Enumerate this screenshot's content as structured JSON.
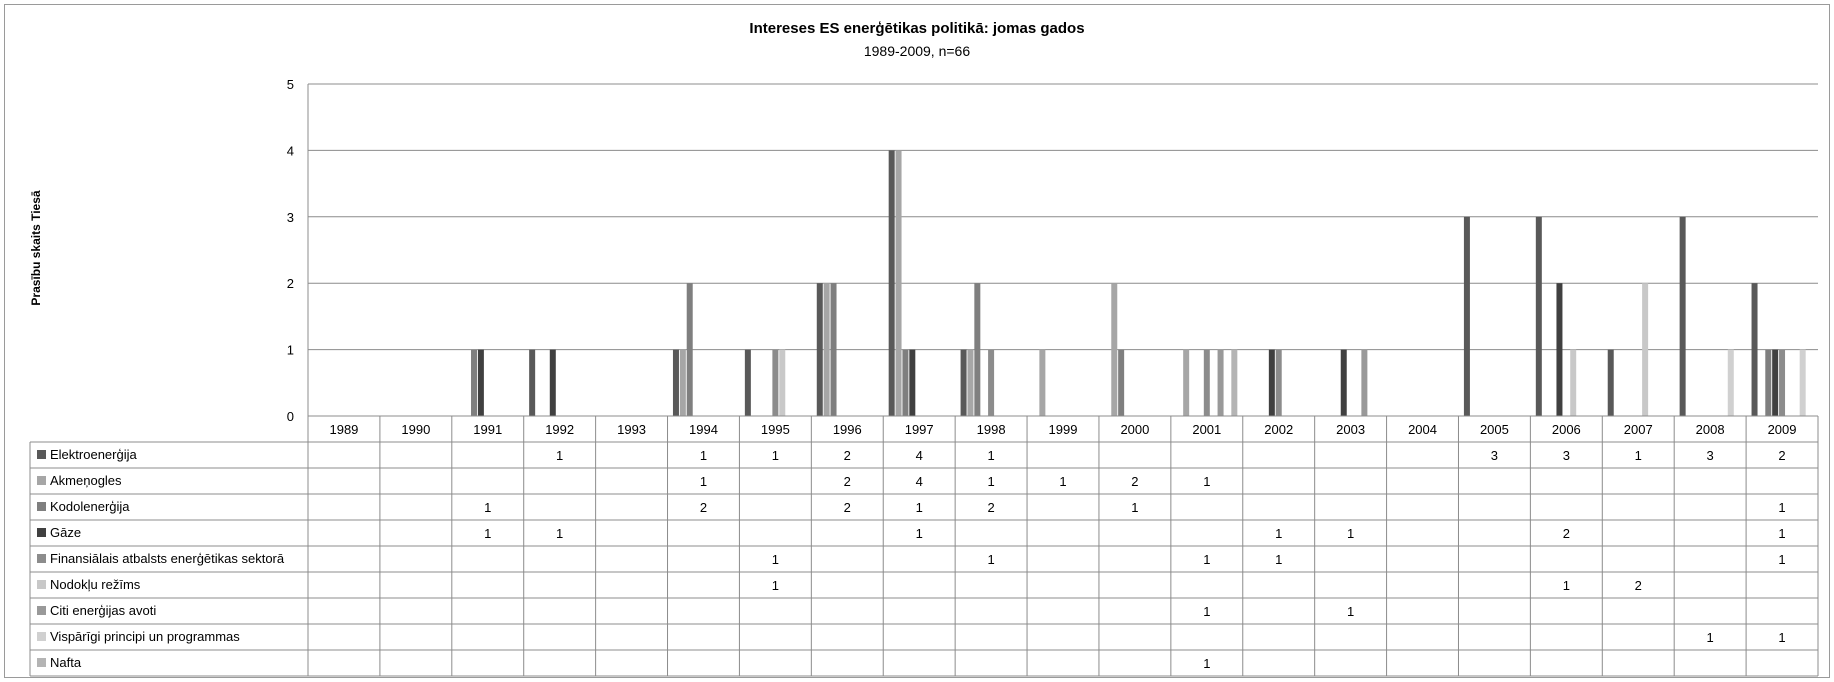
{
  "chart_data": {
    "type": "bar",
    "title": "Intereses ES enerģētikas politikā: jomas gados",
    "subtitle": "1989-2009, n=66",
    "ylabel": "Prasību skaits Tiesā",
    "xlabel": "",
    "ylim": [
      0,
      5
    ],
    "yticks": [
      0,
      1,
      2,
      3,
      4,
      5
    ],
    "grid": true,
    "legend": "data-table-below",
    "categories": [
      "1989",
      "1990",
      "1991",
      "1992",
      "1993",
      "1994",
      "1995",
      "1996",
      "1997",
      "1998",
      "1999",
      "2000",
      "2001",
      "2002",
      "2003",
      "2004",
      "2005",
      "2006",
      "2007",
      "2008",
      "2009"
    ],
    "series": [
      {
        "name": "Elektroenerģija",
        "color": "#595959",
        "values": [
          null,
          null,
          null,
          1,
          null,
          1,
          1,
          2,
          4,
          1,
          null,
          null,
          null,
          null,
          null,
          null,
          3,
          3,
          1,
          3,
          2
        ]
      },
      {
        "name": "Akmeņogles",
        "color": "#a6a6a6",
        "values": [
          null,
          null,
          null,
          null,
          null,
          1,
          null,
          2,
          4,
          1,
          1,
          2,
          1,
          null,
          null,
          null,
          null,
          null,
          null,
          null,
          null
        ]
      },
      {
        "name": "Kodolenerģija",
        "color": "#7f7f7f",
        "values": [
          null,
          null,
          1,
          null,
          null,
          2,
          null,
          2,
          1,
          2,
          null,
          1,
          null,
          null,
          null,
          null,
          null,
          null,
          null,
          null,
          1
        ]
      },
      {
        "name": "Gāze",
        "color": "#404040",
        "values": [
          null,
          null,
          1,
          1,
          null,
          null,
          null,
          null,
          1,
          null,
          null,
          null,
          null,
          1,
          1,
          null,
          null,
          2,
          null,
          null,
          1
        ]
      },
      {
        "name": "Finansiālais atbalsts enerģētikas sektorā",
        "color": "#8c8c8c",
        "values": [
          null,
          null,
          null,
          null,
          null,
          null,
          1,
          null,
          null,
          1,
          null,
          null,
          1,
          1,
          null,
          null,
          null,
          null,
          null,
          null,
          1
        ]
      },
      {
        "name": "Nodokļu režīms",
        "color": "#c8c8c8",
        "values": [
          null,
          null,
          null,
          null,
          null,
          null,
          1,
          null,
          null,
          null,
          null,
          null,
          null,
          null,
          null,
          null,
          null,
          1,
          2,
          null,
          null
        ]
      },
      {
        "name": "Citi enerģijas avoti",
        "color": "#999999",
        "values": [
          null,
          null,
          null,
          null,
          null,
          null,
          null,
          null,
          null,
          null,
          null,
          null,
          1,
          null,
          1,
          null,
          null,
          null,
          null,
          null,
          null
        ]
      },
      {
        "name": "Vispārīgi principi un programmas",
        "color": "#d0d0d0",
        "values": [
          null,
          null,
          null,
          null,
          null,
          null,
          null,
          null,
          null,
          null,
          null,
          null,
          null,
          null,
          null,
          null,
          null,
          null,
          null,
          1,
          1
        ]
      },
      {
        "name": "Nafta",
        "color": "#b4b4b4",
        "values": [
          null,
          null,
          null,
          null,
          null,
          null,
          null,
          null,
          null,
          null,
          null,
          null,
          1,
          null,
          null,
          null,
          null,
          null,
          null,
          null,
          null
        ]
      }
    ]
  }
}
